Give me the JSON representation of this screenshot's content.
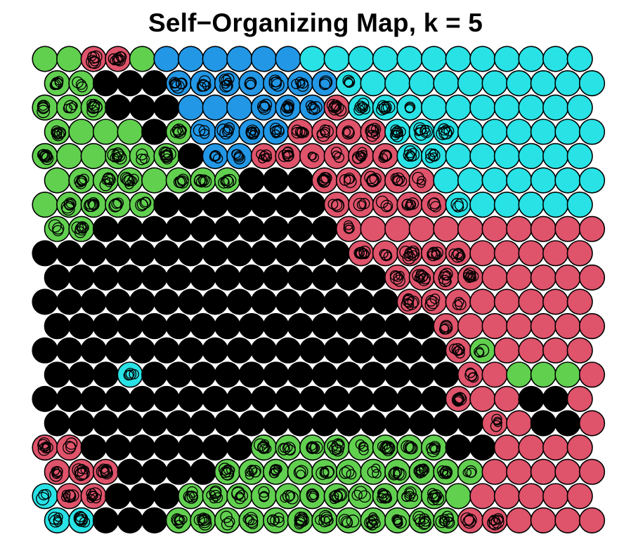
{
  "chart_data": {
    "type": "som-hexagonal-map",
    "title": "Self−Organizing Map, k = 5",
    "grid": {
      "rows": 20,
      "cols": 23,
      "topology": "hexagonal"
    },
    "palette": {
      "0": "#000000",
      "1": "#DF536B",
      "2": "#61D04F",
      "3": "#2297E6",
      "4": "#28E2E5"
    },
    "cluster_rows": [
      "22112333333444444444444",
      "22000333333344444444444",
      "22200033333314444444444",
      "22220233331111444444444",
      "22222203311111144444444",
      "22222222000111114444444",
      "22222000000011111444444",
      "22000000000011111111111",
      "00000000000001111111111",
      "00000000000000111111111",
      "00000000000000011111111",
      "00000000000000001111111",
      "00000000000000000121111",
      "00040000000000000112221",
      "00000000000000000111001",
      "00000000000000000011001",
      "11000000022222222001111",
      "11100002222222222211111",
      "41100022222222222211111",
      "44000222222222222111111"
    ],
    "hollow_nodes": [
      [
        1,
        3
      ],
      [
        1,
        4
      ],
      [
        1,
        5
      ],
      [
        1,
        6
      ],
      [
        1,
        7
      ],
      [
        1,
        8
      ],
      [
        1,
        9
      ],
      [
        1,
        10
      ],
      [
        1,
        11
      ],
      [
        1,
        12
      ],
      [
        2,
        5
      ],
      [
        2,
        9
      ],
      [
        2,
        10
      ],
      [
        2,
        11
      ],
      [
        2,
        12
      ],
      [
        2,
        13
      ],
      [
        2,
        14
      ],
      [
        2,
        15
      ],
      [
        3,
        0
      ],
      [
        3,
        4
      ],
      [
        3,
        5
      ],
      [
        3,
        6
      ],
      [
        3,
        7
      ],
      [
        3,
        8
      ],
      [
        3,
        9
      ],
      [
        3,
        10
      ],
      [
        3,
        11
      ],
      [
        3,
        12
      ],
      [
        3,
        13
      ],
      [
        3,
        14
      ],
      [
        3,
        15
      ],
      [
        3,
        16
      ],
      [
        4,
        0
      ],
      [
        4,
        3
      ],
      [
        4,
        4
      ],
      [
        4,
        5
      ],
      [
        4,
        6
      ],
      [
        4,
        7
      ],
      [
        4,
        8
      ],
      [
        4,
        9
      ],
      [
        4,
        10
      ],
      [
        4,
        11
      ],
      [
        4,
        12
      ],
      [
        4,
        13
      ],
      [
        4,
        14
      ],
      [
        4,
        15
      ],
      [
        4,
        16
      ],
      [
        5,
        1
      ],
      [
        5,
        2
      ],
      [
        5,
        3
      ],
      [
        5,
        5
      ],
      [
        5,
        6
      ],
      [
        5,
        7
      ],
      [
        5,
        8
      ],
      [
        5,
        9
      ],
      [
        5,
        10
      ],
      [
        5,
        11
      ],
      [
        5,
        12
      ],
      [
        5,
        13
      ],
      [
        5,
        14
      ],
      [
        5,
        15
      ],
      [
        6,
        1
      ],
      [
        6,
        2
      ],
      [
        6,
        3
      ],
      [
        6,
        4
      ],
      [
        6,
        5
      ],
      [
        6,
        6
      ],
      [
        6,
        7
      ],
      [
        6,
        8
      ],
      [
        6,
        9
      ],
      [
        6,
        10
      ],
      [
        6,
        11
      ],
      [
        6,
        12
      ],
      [
        6,
        13
      ],
      [
        6,
        14
      ],
      [
        6,
        15
      ],
      [
        6,
        16
      ],
      [
        6,
        17
      ],
      [
        7,
        0
      ],
      [
        7,
        1
      ],
      [
        7,
        2
      ],
      [
        7,
        3
      ],
      [
        7,
        4
      ],
      [
        7,
        5
      ],
      [
        7,
        6
      ],
      [
        7,
        7
      ],
      [
        7,
        8
      ],
      [
        7,
        9
      ],
      [
        7,
        10
      ],
      [
        7,
        11
      ],
      [
        7,
        12
      ],
      [
        8,
        0
      ],
      [
        8,
        1
      ],
      [
        8,
        2
      ],
      [
        8,
        3
      ],
      [
        8,
        4
      ],
      [
        8,
        5
      ],
      [
        8,
        6
      ],
      [
        8,
        7
      ],
      [
        8,
        8
      ],
      [
        8,
        9
      ],
      [
        8,
        10
      ],
      [
        8,
        11
      ],
      [
        8,
        12
      ],
      [
        8,
        13
      ],
      [
        8,
        14
      ],
      [
        8,
        15
      ],
      [
        8,
        16
      ],
      [
        8,
        17
      ],
      [
        9,
        0
      ],
      [
        9,
        1
      ],
      [
        9,
        2
      ],
      [
        9,
        3
      ],
      [
        9,
        4
      ],
      [
        9,
        5
      ],
      [
        9,
        6
      ],
      [
        9,
        7
      ],
      [
        9,
        8
      ],
      [
        9,
        9
      ],
      [
        9,
        10
      ],
      [
        9,
        11
      ],
      [
        9,
        12
      ],
      [
        9,
        13
      ],
      [
        9,
        14
      ],
      [
        9,
        15
      ],
      [
        9,
        16
      ],
      [
        9,
        17
      ],
      [
        10,
        0
      ],
      [
        10,
        1
      ],
      [
        10,
        2
      ],
      [
        10,
        3
      ],
      [
        10,
        4
      ],
      [
        10,
        5
      ],
      [
        10,
        6
      ],
      [
        10,
        7
      ],
      [
        10,
        8
      ],
      [
        10,
        9
      ],
      [
        10,
        10
      ],
      [
        10,
        11
      ],
      [
        10,
        12
      ],
      [
        10,
        13
      ],
      [
        10,
        14
      ],
      [
        10,
        15
      ],
      [
        10,
        16
      ],
      [
        10,
        17
      ],
      [
        11,
        0
      ],
      [
        11,
        1
      ],
      [
        11,
        2
      ],
      [
        11,
        3
      ],
      [
        11,
        4
      ],
      [
        11,
        5
      ],
      [
        11,
        6
      ],
      [
        11,
        7
      ],
      [
        11,
        8
      ],
      [
        11,
        9
      ],
      [
        11,
        10
      ],
      [
        11,
        11
      ],
      [
        11,
        12
      ],
      [
        11,
        13
      ],
      [
        11,
        14
      ],
      [
        11,
        15
      ],
      [
        11,
        16
      ],
      [
        12,
        0
      ],
      [
        12,
        1
      ],
      [
        12,
        2
      ],
      [
        12,
        3
      ],
      [
        12,
        4
      ],
      [
        12,
        5
      ],
      [
        12,
        6
      ],
      [
        12,
        7
      ],
      [
        12,
        8
      ],
      [
        12,
        9
      ],
      [
        12,
        10
      ],
      [
        12,
        11
      ],
      [
        12,
        12
      ],
      [
        12,
        13
      ],
      [
        12,
        14
      ],
      [
        12,
        15
      ],
      [
        12,
        16
      ],
      [
        12,
        17
      ],
      [
        12,
        18
      ],
      [
        13,
        0
      ],
      [
        13,
        1
      ],
      [
        13,
        2
      ],
      [
        13,
        3
      ],
      [
        13,
        4
      ],
      [
        13,
        5
      ],
      [
        13,
        6
      ],
      [
        13,
        7
      ],
      [
        13,
        8
      ],
      [
        13,
        9
      ],
      [
        13,
        10
      ],
      [
        13,
        11
      ],
      [
        13,
        12
      ],
      [
        13,
        13
      ],
      [
        13,
        14
      ],
      [
        13,
        15
      ],
      [
        13,
        16
      ],
      [
        13,
        17
      ],
      [
        14,
        0
      ],
      [
        14,
        1
      ],
      [
        14,
        2
      ],
      [
        14,
        3
      ],
      [
        14,
        4
      ],
      [
        14,
        5
      ],
      [
        14,
        6
      ],
      [
        14,
        7
      ],
      [
        14,
        8
      ],
      [
        14,
        9
      ],
      [
        14,
        10
      ],
      [
        14,
        11
      ],
      [
        14,
        12
      ],
      [
        14,
        13
      ],
      [
        14,
        14
      ],
      [
        14,
        15
      ],
      [
        14,
        16
      ],
      [
        14,
        17
      ],
      [
        15,
        0
      ],
      [
        15,
        1
      ],
      [
        15,
        2
      ],
      [
        15,
        3
      ],
      [
        15,
        4
      ],
      [
        15,
        5
      ],
      [
        15,
        6
      ],
      [
        15,
        7
      ],
      [
        15,
        8
      ],
      [
        15,
        9
      ],
      [
        15,
        10
      ],
      [
        15,
        11
      ],
      [
        15,
        12
      ],
      [
        15,
        13
      ],
      [
        15,
        14
      ],
      [
        15,
        15
      ],
      [
        15,
        16
      ],
      [
        15,
        17
      ],
      [
        15,
        18
      ],
      [
        16,
        0
      ],
      [
        16,
        1
      ],
      [
        16,
        2
      ],
      [
        16,
        3
      ],
      [
        16,
        4
      ],
      [
        16,
        5
      ],
      [
        16,
        6
      ],
      [
        16,
        7
      ],
      [
        16,
        8
      ],
      [
        16,
        9
      ],
      [
        16,
        10
      ],
      [
        16,
        11
      ],
      [
        16,
        12
      ],
      [
        16,
        13
      ],
      [
        16,
        14
      ],
      [
        16,
        15
      ],
      [
        16,
        16
      ],
      [
        16,
        17
      ],
      [
        17,
        0
      ],
      [
        17,
        1
      ],
      [
        17,
        2
      ],
      [
        17,
        3
      ],
      [
        17,
        4
      ],
      [
        17,
        5
      ],
      [
        17,
        6
      ],
      [
        17,
        7
      ],
      [
        17,
        8
      ],
      [
        17,
        9
      ],
      [
        17,
        10
      ],
      [
        17,
        11
      ],
      [
        17,
        12
      ],
      [
        17,
        13
      ],
      [
        17,
        14
      ],
      [
        17,
        15
      ],
      [
        17,
        16
      ],
      [
        17,
        17
      ],
      [
        18,
        0
      ],
      [
        18,
        1
      ],
      [
        18,
        2
      ],
      [
        18,
        3
      ],
      [
        18,
        4
      ],
      [
        18,
        5
      ],
      [
        18,
        6
      ],
      [
        18,
        7
      ],
      [
        18,
        8
      ],
      [
        18,
        9
      ],
      [
        18,
        10
      ],
      [
        18,
        11
      ],
      [
        18,
        12
      ],
      [
        18,
        13
      ],
      [
        18,
        14
      ],
      [
        18,
        15
      ],
      [
        18,
        16
      ],
      [
        19,
        0
      ],
      [
        19,
        1
      ],
      [
        19,
        2
      ],
      [
        19,
        3
      ],
      [
        19,
        4
      ],
      [
        19,
        5
      ],
      [
        19,
        6
      ],
      [
        19,
        7
      ],
      [
        19,
        8
      ],
      [
        19,
        9
      ],
      [
        19,
        10
      ],
      [
        19,
        11
      ],
      [
        19,
        12
      ],
      [
        19,
        13
      ],
      [
        19,
        14
      ],
      [
        19,
        15
      ],
      [
        19,
        16
      ],
      [
        19,
        17
      ],
      [
        19,
        18
      ],
      [
        1,
        0
      ],
      [
        1,
        1
      ],
      [
        1,
        2
      ],
      [
        2,
        0
      ],
      [
        2,
        1
      ],
      [
        2,
        2
      ],
      [
        0,
        2
      ],
      [
        0,
        3
      ]
    ],
    "legend": "none",
    "axes": "none"
  }
}
